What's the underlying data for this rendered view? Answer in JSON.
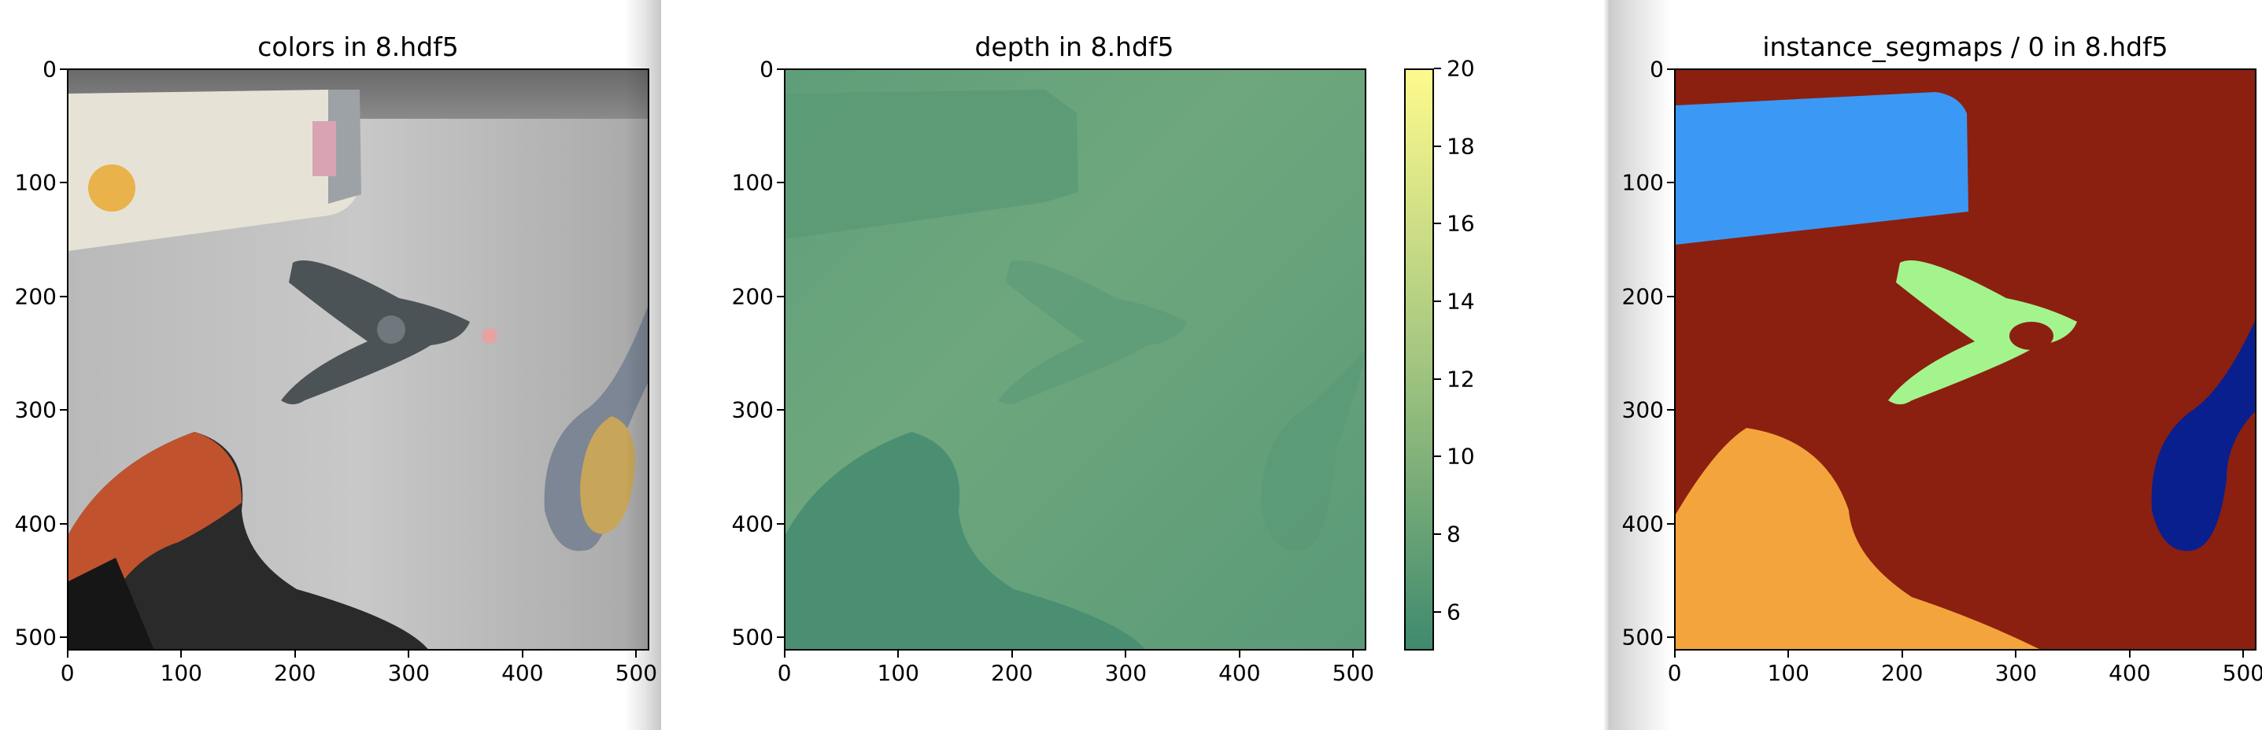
{
  "panels": [
    {
      "title": "colors in 8.hdf5"
    },
    {
      "title": "depth in 8.hdf5"
    },
    {
      "title": "instance_segmaps / 0 in 8.hdf5"
    }
  ],
  "axes": {
    "x_ticks": [
      "0",
      "100",
      "200",
      "300",
      "400",
      "500"
    ],
    "y_ticks": [
      "0",
      "100",
      "200",
      "300",
      "400",
      "500"
    ],
    "x_tick_values": [
      0,
      100,
      200,
      300,
      400,
      500
    ],
    "y_tick_values": [
      0,
      100,
      200,
      300,
      400,
      500
    ],
    "range": [
      0,
      512
    ]
  },
  "colorbar": {
    "ticks": [
      "6",
      "8",
      "10",
      "12",
      "14",
      "16",
      "18",
      "20"
    ],
    "tick_values": [
      6,
      8,
      10,
      12,
      14,
      16,
      18,
      20
    ],
    "range": [
      5,
      20
    ],
    "colormap": "summer"
  },
  "colors": {
    "seg_background": "#8b2010",
    "seg_blue": "#3b99f5",
    "seg_green": "#a4f48e",
    "seg_orange": "#f4a43c",
    "seg_navy": "#0a1f8e"
  }
}
